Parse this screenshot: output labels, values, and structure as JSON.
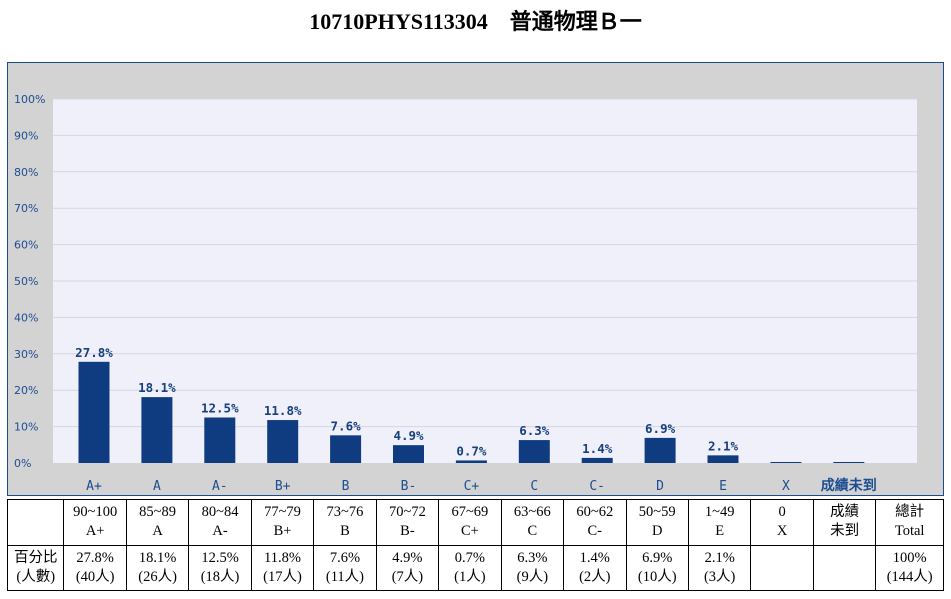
{
  "page": {
    "title": "10710PHYS113304　普通物理Ｂ一"
  },
  "chart_data": {
    "type": "bar",
    "categories": [
      "A+",
      "A",
      "A-",
      "B+",
      "B",
      "B-",
      "C+",
      "C",
      "C-",
      "D",
      "E",
      "X",
      "成績未到"
    ],
    "values": [
      27.8,
      18.1,
      12.5,
      11.8,
      7.6,
      4.9,
      0.7,
      6.3,
      1.4,
      6.9,
      2.1,
      0,
      0
    ],
    "data_labels": [
      "27.8%",
      "18.1%",
      "12.5%",
      "11.8%",
      "7.6%",
      "4.9%",
      "0.7%",
      "6.3%",
      "1.4%",
      "6.9%",
      "2.1%",
      "",
      ""
    ],
    "y_ticks": [
      "0%",
      "10%",
      "20%",
      "30%",
      "40%",
      "50%",
      "60%",
      "70%",
      "80%",
      "90%",
      "100%"
    ],
    "ylim": [
      0,
      100
    ],
    "grid": true,
    "colors": {
      "bar": "#0f3c80",
      "plot_bg": "#f0f0fb",
      "frame_bg": "#d3d3d3",
      "grid": "#d6d6e0"
    }
  },
  "table": {
    "rows": [
      {
        "cells": [
          {
            "lines": [
              ""
            ]
          },
          {
            "lines": [
              "90~100",
              "A+"
            ]
          },
          {
            "lines": [
              "85~89",
              "A"
            ]
          },
          {
            "lines": [
              "80~84",
              "A-"
            ]
          },
          {
            "lines": [
              "77~79",
              "B+"
            ]
          },
          {
            "lines": [
              "73~76",
              "B"
            ]
          },
          {
            "lines": [
              "70~72",
              "B-"
            ]
          },
          {
            "lines": [
              "67~69",
              "C+"
            ]
          },
          {
            "lines": [
              "63~66",
              "C"
            ]
          },
          {
            "lines": [
              "60~62",
              "C-"
            ]
          },
          {
            "lines": [
              "50~59",
              "D"
            ]
          },
          {
            "lines": [
              "1~49",
              "E"
            ]
          },
          {
            "lines": [
              "0",
              "X"
            ]
          },
          {
            "lines": [
              "成績",
              "未到"
            ]
          },
          {
            "lines": [
              "總計",
              "Total"
            ]
          }
        ]
      },
      {
        "cells": [
          {
            "lines": [
              "百分比",
              "(人數)"
            ]
          },
          {
            "lines": [
              "27.8%",
              "(40人)"
            ]
          },
          {
            "lines": [
              "18.1%",
              "(26人)"
            ]
          },
          {
            "lines": [
              "12.5%",
              "(18人)"
            ]
          },
          {
            "lines": [
              "11.8%",
              "(17人)"
            ]
          },
          {
            "lines": [
              "7.6%",
              "(11人)"
            ]
          },
          {
            "lines": [
              "4.9%",
              "(7人)"
            ]
          },
          {
            "lines": [
              "0.7%",
              "(1人)"
            ]
          },
          {
            "lines": [
              "6.3%",
              "(9人)"
            ]
          },
          {
            "lines": [
              "1.4%",
              "(2人)"
            ]
          },
          {
            "lines": [
              "6.9%",
              "(10人)"
            ]
          },
          {
            "lines": [
              "2.1%",
              "(3人)"
            ]
          },
          {
            "lines": [
              ""
            ]
          },
          {
            "lines": [
              ""
            ]
          },
          {
            "lines": [
              "100%",
              "(144人)"
            ]
          }
        ]
      }
    ]
  }
}
